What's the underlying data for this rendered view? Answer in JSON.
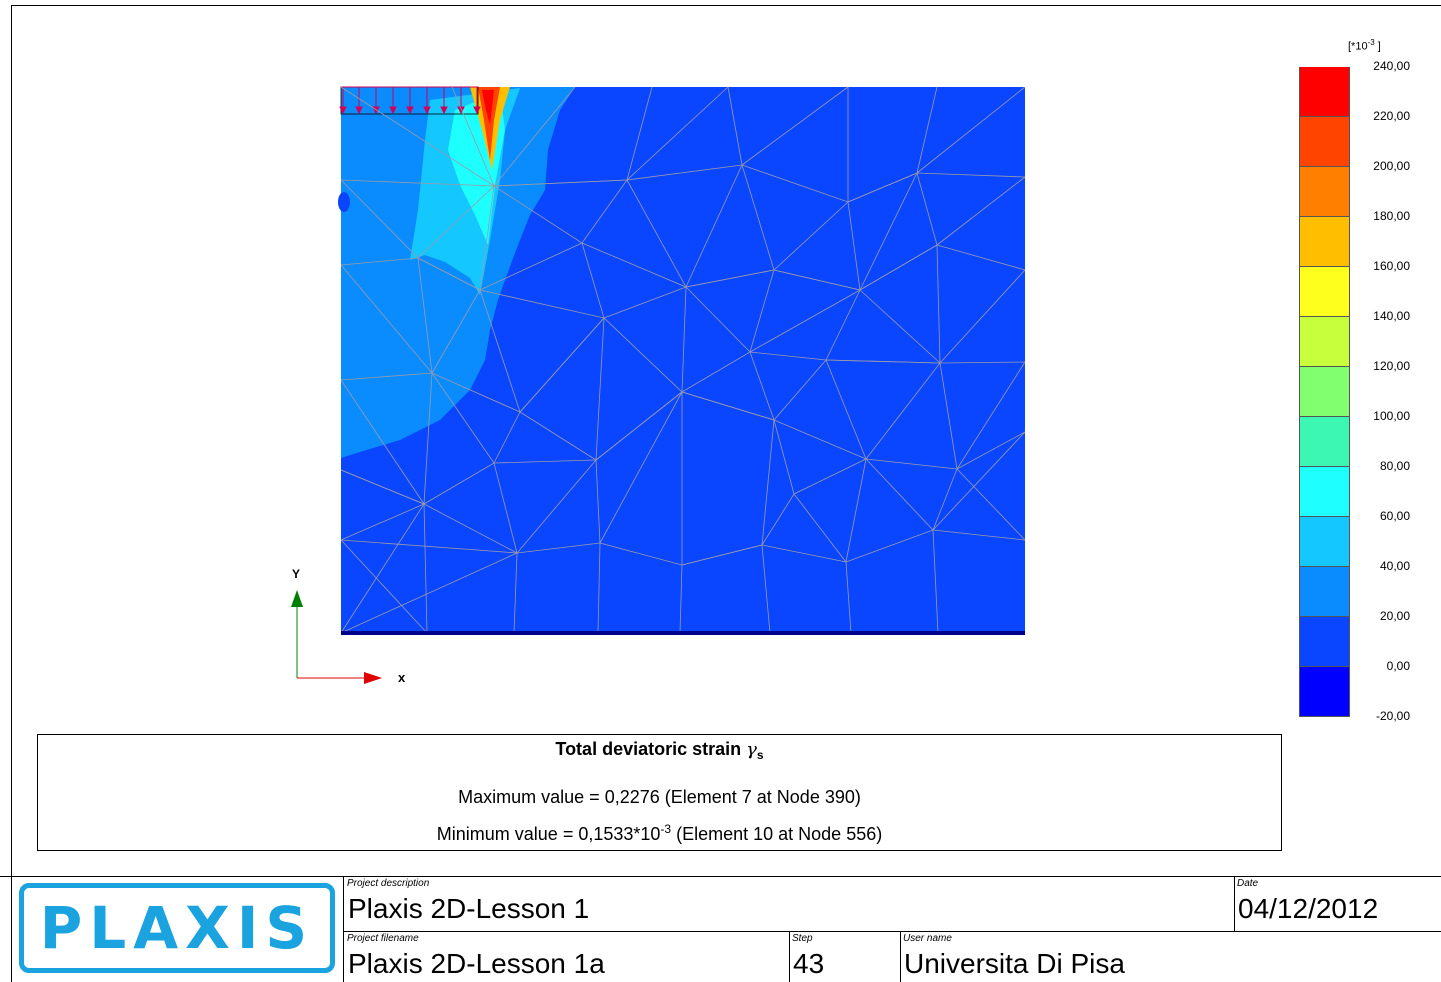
{
  "axes": {
    "x_label": "x",
    "y_label": "Y"
  },
  "legend": {
    "unit_label": "[*10",
    "unit_exp": "-3",
    "unit_close": " ]",
    "bands": [
      {
        "label": "240,00",
        "color": "#ff0000"
      },
      {
        "label": "220,00",
        "color": "#ff4400"
      },
      {
        "label": "200,00",
        "color": "#ff7f00"
      },
      {
        "label": "180,00",
        "color": "#ffbf00"
      },
      {
        "label": "160,00",
        "color": "#ffff1e"
      },
      {
        "label": "140,00",
        "color": "#c8ff3c"
      },
      {
        "label": "120,00",
        "color": "#82ff6e"
      },
      {
        "label": "100,00",
        "color": "#3cf7b4"
      },
      {
        "label": "80,00",
        "color": "#1effff"
      },
      {
        "label": "60,00",
        "color": "#14c8ff"
      },
      {
        "label": "40,00",
        "color": "#0a8cff"
      },
      {
        "label": "20,00",
        "color": "#0a46ff"
      },
      {
        "label": "0,00",
        "color": "#0000ff"
      }
    ],
    "bottom_label": "-20,00"
  },
  "info": {
    "title": "Total deviatoric strain",
    "symbol": "γ",
    "symbol_sub": "s",
    "max_line": "Maximum value = 0,2276  (Element 7 at Node 390)",
    "min_prefix": "Minimum value = 0,1533*10",
    "min_exp": "-3",
    "min_suffix": "  (Element 10 at Node 556)"
  },
  "footer": {
    "logo": "PLAXIS",
    "project_description_caption": "Project description",
    "project_description": "Plaxis 2D-Lesson 1",
    "project_filename_caption": "Project filename",
    "project_filename": "Plaxis 2D-Lesson 1a",
    "step_caption": "Step",
    "step": "43",
    "user_caption": "User name",
    "user": "Universita Di Pisa",
    "date_caption": "Date",
    "date": "04/12/2012"
  },
  "colors": {
    "base_blue": "#0a46ff",
    "mid_blue": "#0a8cff",
    "light_blue": "#14c8ff",
    "cyan": "#1effff",
    "orange": "#ff7f00",
    "red": "#ff0000",
    "load_arrow": "#d0005a",
    "axis_x": "#e00000",
    "axis_y": "#008000",
    "logo": "#1aa3df"
  }
}
